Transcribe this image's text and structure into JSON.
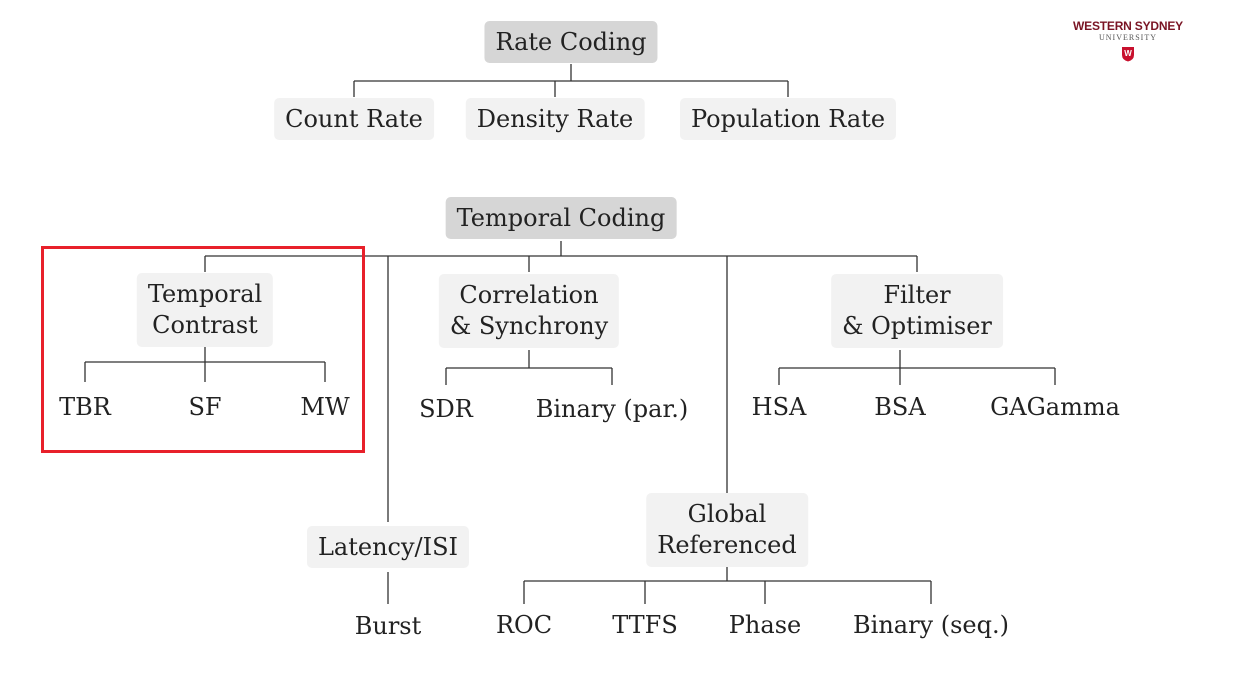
{
  "logo": {
    "line1": "WESTERN SYDNEY",
    "line2": "UNIVERSITY",
    "mark": "W"
  },
  "rate": {
    "root": "Rate Coding",
    "children": [
      "Count Rate",
      "Density Rate",
      "Population Rate"
    ]
  },
  "temporal": {
    "root": "Temporal Coding",
    "contrast": {
      "line1": "Temporal",
      "line2": "Contrast",
      "children": [
        "TBR",
        "SF",
        "MW"
      ]
    },
    "latency": {
      "label": "Latency/ISI",
      "children": [
        "Burst"
      ]
    },
    "correlation": {
      "line1": "Correlation",
      "line2": "& Synchrony",
      "children": [
        "SDR",
        "Binary (par.)"
      ]
    },
    "global": {
      "line1": "Global",
      "line2": "Referenced",
      "children": [
        "ROC",
        "TTFS",
        "Phase",
        "Binary (seq.)"
      ]
    },
    "filter": {
      "line1": "Filter",
      "line2": "& Optimiser",
      "children": [
        "HSA",
        "BSA",
        "GAGamma"
      ]
    }
  },
  "colors": {
    "highlight": "#e8202a",
    "root_box": "#d6d6d6",
    "child_box": "#f2f2f2",
    "brand": "#7a1424"
  }
}
